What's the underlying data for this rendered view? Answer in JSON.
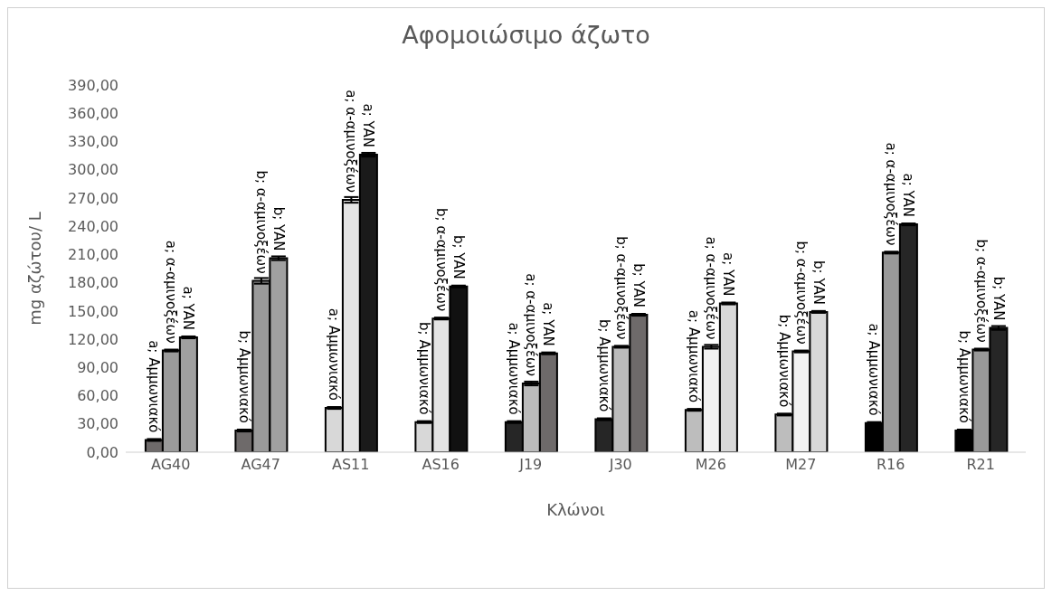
{
  "chart_data": {
    "type": "bar",
    "title": "Αφομοιώσιμο άζωτο",
    "xlabel": "Κλώνοι",
    "ylabel": "mg αζώτου/ L",
    "categories": [
      "AG40",
      "AG47",
      "AS11",
      "AS16",
      "J19",
      "J30",
      "M26",
      "M27",
      "R16",
      "R21"
    ],
    "series": [
      {
        "colors": [
          "#6e6a6a",
          "#6e6a6a",
          "#d8d8d8",
          "#d8d8d8",
          "#262626",
          "#262626",
          "#bdbdbd",
          "#bdbdbd",
          "#000000",
          "#000000"
        ],
        "values": [
          13,
          23,
          47,
          32,
          32,
          35,
          45,
          40,
          31,
          23
        ],
        "errors": [
          1,
          1,
          1,
          1,
          1,
          1,
          1,
          1,
          1,
          1
        ],
        "value_labels": [
          "a; Αμμωνιακό",
          "b; Αμμωνιακό",
          "a; Αμμωνιακό",
          "b; Αμμωνιακό",
          "a; Αμμωνιακό",
          "b; Αμμωνιακό",
          "a; Αμμωνιακό",
          "b; Αμμωνιακό",
          "a; Αμμωνιακό",
          "b; Αμμωνιακό"
        ]
      },
      {
        "colors": [
          "#9a9a9a",
          "#9a9a9a",
          "#e4e4e4",
          "#e4e4e4",
          "#bbbbbb",
          "#bbbbbb",
          "#f2f2f2",
          "#f2f2f2",
          "#999999",
          "#999999"
        ],
        "values": [
          108,
          182,
          268,
          142,
          73,
          112,
          112,
          107,
          212,
          109
        ],
        "errors": [
          1,
          3,
          3,
          1,
          2,
          1,
          2,
          1,
          1,
          1
        ],
        "value_labels": [
          "a; α-αμινοξέων",
          "b; α-αμινοξέων",
          "a; α-αμινοξέων",
          "b; α-αμινοξέων",
          "a; α-αμινοξέων",
          "b; α-αμινοξέων",
          "a; α-αμινοξέων",
          "b; α-αμινοξέων",
          "a; α-αμινοξέων",
          "b; α-αμινοξέων"
        ]
      },
      {
        "colors": [
          "#a0a0a0",
          "#a0a0a0",
          "#1a1a1a",
          "#111111",
          "#6e6a6a",
          "#6e6a6a",
          "#d8d8d8",
          "#d8d8d8",
          "#262626",
          "#262626"
        ],
        "values": [
          122,
          206,
          316,
          176,
          105,
          146,
          158,
          149,
          242,
          132
        ],
        "errors": [
          1,
          2,
          2,
          1,
          1,
          1,
          1,
          1,
          1,
          2
        ],
        "value_labels": [
          "a; YAN",
          "b; YAN",
          "a; YAN",
          "b; YAN",
          "a; YAN",
          "b; YAN",
          "a; YAN",
          "b; YAN",
          "a; YAN",
          "b; YAN"
        ]
      }
    ],
    "ylim": [
      0,
      390
    ],
    "yticks": [
      {
        "value": 0,
        "label": "0,00"
      },
      {
        "value": 30,
        "label": "30,00"
      },
      {
        "value": 60,
        "label": "60,00"
      },
      {
        "value": 90,
        "label": "90,00"
      },
      {
        "value": 120,
        "label": "120,00"
      },
      {
        "value": 150,
        "label": "150,00"
      },
      {
        "value": 180,
        "label": "180,00"
      },
      {
        "value": 210,
        "label": "210,00"
      },
      {
        "value": 240,
        "label": "240,00"
      },
      {
        "value": 270,
        "label": "270,00"
      },
      {
        "value": 300,
        "label": "300,00"
      },
      {
        "value": 330,
        "label": "330,00"
      },
      {
        "value": 360,
        "label": "360,00"
      },
      {
        "value": 390,
        "label": "390,00"
      }
    ],
    "grid": false,
    "legend": false
  }
}
